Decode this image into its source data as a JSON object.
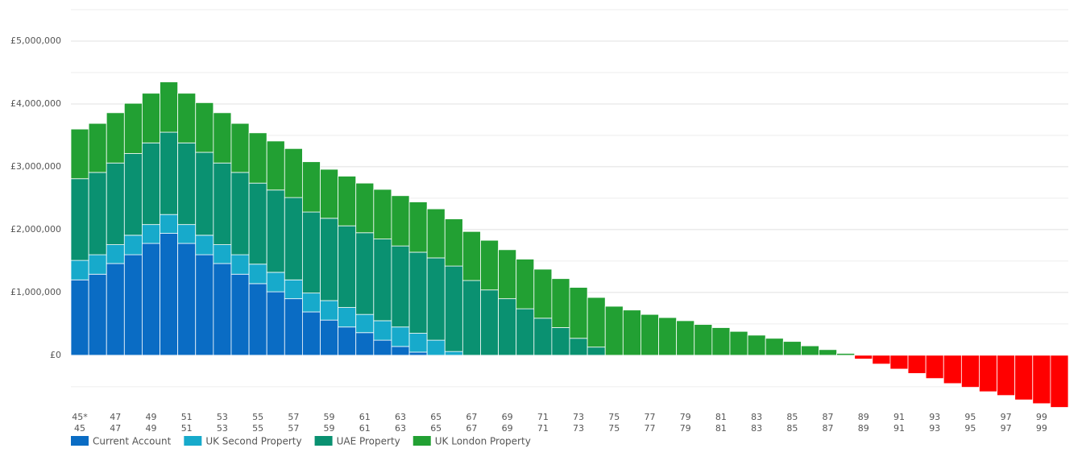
{
  "chart_data": {
    "type": "stacked_bar",
    "categories": [
      "45*",
      null,
      "47",
      null,
      "49",
      null,
      "51",
      null,
      "53",
      null,
      "55",
      null,
      "57",
      null,
      "59",
      null,
      "61",
      null,
      "63",
      null,
      "65",
      null,
      "67",
      null,
      "69",
      null,
      "71",
      null,
      "73",
      null,
      "75",
      null,
      "77",
      null,
      "79",
      null,
      "81",
      null,
      "83",
      null,
      "85",
      null,
      "87",
      null,
      "89",
      null,
      "91",
      null,
      "93",
      null,
      "95",
      null,
      "97",
      null,
      "99",
      null
    ],
    "categories_row2": [
      "45",
      null,
      "47",
      null,
      "49",
      null,
      "51",
      null,
      "53",
      null,
      "55",
      null,
      "57",
      null,
      "59",
      null,
      "61",
      null,
      "63",
      null,
      "65",
      null,
      "67",
      null,
      "69",
      null,
      "71",
      null,
      "73",
      null,
      "75",
      null,
      "77",
      null,
      "79",
      null,
      "81",
      null,
      "83",
      null,
      "85",
      null,
      "87",
      null,
      "89",
      null,
      "91",
      null,
      "93",
      null,
      "95",
      null,
      "97",
      null,
      "99",
      null
    ],
    "series": [
      {
        "name": "Current Account",
        "color": "#0a6cc4",
        "values": [
          1200000,
          1290000,
          1460000,
          1600000,
          1780000,
          1940000,
          1780000,
          1600000,
          1460000,
          1290000,
          1140000,
          1010000,
          900000,
          690000,
          560000,
          450000,
          360000,
          240000,
          140000,
          50000,
          0,
          0,
          0,
          0,
          0,
          0,
          0,
          0,
          0,
          0,
          0,
          0,
          0,
          0,
          0,
          0,
          0,
          0,
          0,
          0,
          0,
          0,
          0,
          0,
          0,
          0,
          0,
          0,
          0,
          0,
          0,
          0,
          0,
          0,
          0,
          0
        ]
      },
      {
        "name": "UK Second Property",
        "color": "#17aacb",
        "values": [
          310000,
          310000,
          300000,
          310000,
          300000,
          300000,
          300000,
          310000,
          300000,
          310000,
          310000,
          310000,
          300000,
          300000,
          310000,
          310000,
          290000,
          310000,
          310000,
          300000,
          240000,
          60000,
          0,
          0,
          0,
          0,
          0,
          0,
          0,
          0,
          0,
          0,
          0,
          0,
          0,
          0,
          0,
          0,
          0,
          0,
          0,
          0,
          0,
          0,
          0,
          0,
          0,
          0,
          0,
          0,
          0,
          0,
          0,
          0,
          0,
          0
        ]
      },
      {
        "name": "UAE Property",
        "color": "#0a9171",
        "values": [
          1300000,
          1310000,
          1300000,
          1300000,
          1300000,
          1310000,
          1300000,
          1320000,
          1300000,
          1310000,
          1290000,
          1310000,
          1310000,
          1290000,
          1310000,
          1300000,
          1300000,
          1300000,
          1290000,
          1290000,
          1310000,
          1360000,
          1190000,
          1040000,
          900000,
          740000,
          590000,
          440000,
          270000,
          130000,
          0,
          0,
          0,
          0,
          0,
          0,
          0,
          0,
          0,
          0,
          0,
          0,
          0,
          0,
          0,
          0,
          0,
          0,
          0,
          0,
          0,
          0,
          0,
          0,
          0,
          0
        ]
      },
      {
        "name": "UK London Property",
        "color": "#22a033",
        "values": [
          790000,
          780000,
          800000,
          800000,
          790000,
          800000,
          790000,
          790000,
          800000,
          780000,
          800000,
          780000,
          780000,
          800000,
          780000,
          790000,
          790000,
          790000,
          800000,
          800000,
          780000,
          750000,
          780000,
          790000,
          780000,
          790000,
          780000,
          780000,
          810000,
          790000,
          780000,
          720000,
          650000,
          600000,
          550000,
          490000,
          440000,
          380000,
          320000,
          270000,
          220000,
          150000,
          90000,
          30000,
          0,
          0,
          0,
          0,
          0,
          0,
          0,
          0,
          0,
          0,
          0,
          0
        ]
      },
      {
        "color": "#ff0000",
        "values": [
          0,
          0,
          0,
          0,
          0,
          0,
          0,
          0,
          0,
          0,
          0,
          0,
          0,
          0,
          0,
          0,
          0,
          0,
          0,
          0,
          0,
          0,
          0,
          0,
          0,
          0,
          0,
          0,
          0,
          0,
          0,
          0,
          0,
          0,
          0,
          0,
          0,
          0,
          0,
          0,
          0,
          0,
          0,
          0,
          -60000,
          -140000,
          -220000,
          -290000,
          -370000,
          -450000,
          -510000,
          -580000,
          -640000,
          -710000,
          -770000,
          -830000
        ]
      }
    ],
    "ylim": [
      -900000,
      5500000
    ],
    "yticks": [
      {
        "value": 0,
        "label": "£0"
      },
      {
        "value": 1000000,
        "label": "£1,000,000"
      },
      {
        "value": 2000000,
        "label": "£2,000,000"
      },
      {
        "value": 3000000,
        "label": "£3,000,000"
      },
      {
        "value": 4000000,
        "label": "£4,000,000"
      },
      {
        "value": 5000000,
        "label": "£5,000,000"
      }
    ],
    "minor_gridlines": [
      -500000,
      500000,
      1500000,
      2500000,
      3500000,
      4500000,
      5500000
    ],
    "grid": true
  }
}
